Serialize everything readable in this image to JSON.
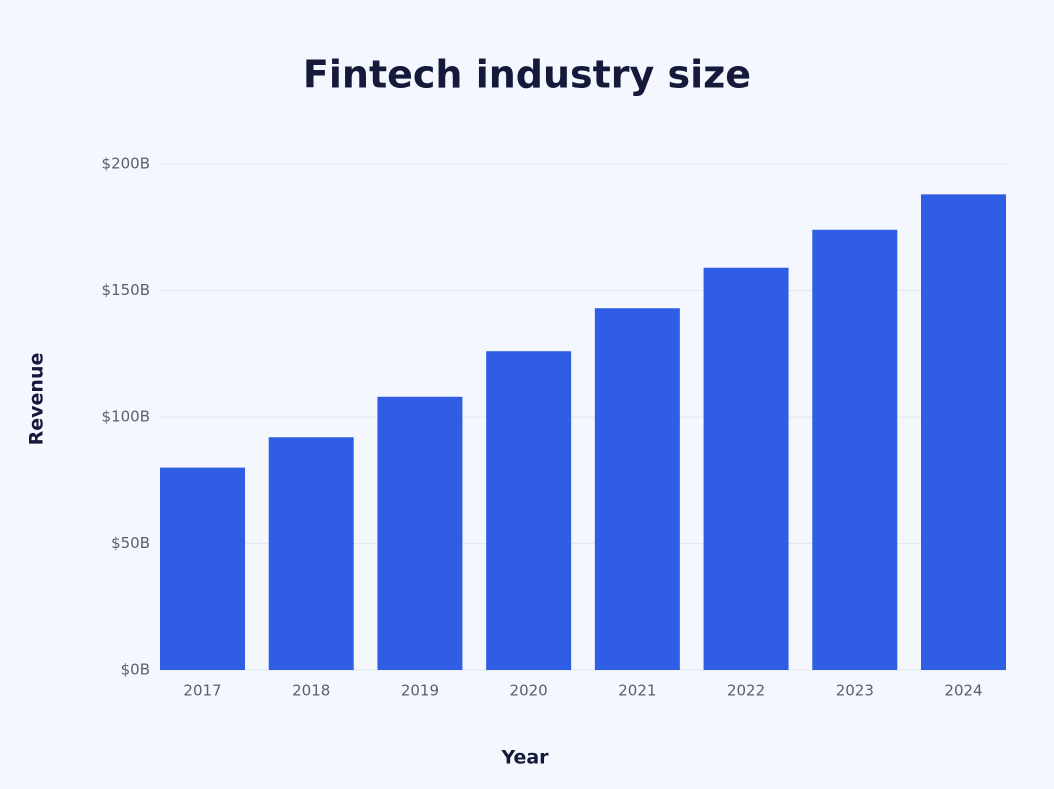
{
  "chart_data": {
    "type": "bar",
    "title": "Fintech industry size",
    "x_label": "Year",
    "y_label": "Revenue",
    "categories": [
      "2017",
      "2018",
      "2019",
      "2020",
      "2021",
      "2022",
      "2023",
      "2024"
    ],
    "values": [
      80,
      92,
      108,
      126,
      143,
      159,
      174,
      188
    ],
    "color": "#2f5ee4",
    "ylim": [
      0,
      200
    ],
    "yticks": [
      {
        "value": 0,
        "label": "$0B"
      },
      {
        "value": 50,
        "label": "$50B"
      },
      {
        "value": 100,
        "label": "$100B"
      },
      {
        "value": 150,
        "label": "$150B"
      },
      {
        "value": 200,
        "label": "$200B"
      }
    ],
    "grid": true
  }
}
